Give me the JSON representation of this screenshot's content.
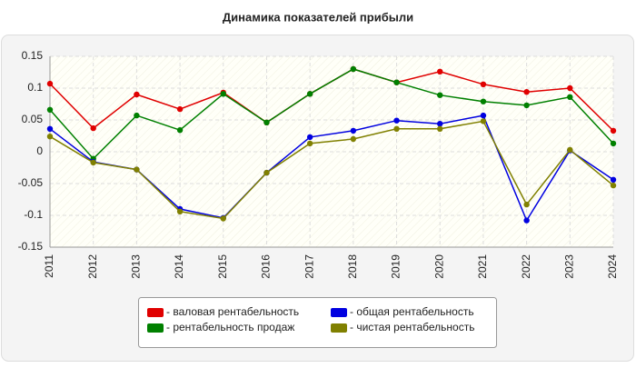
{
  "chart_data": {
    "type": "line",
    "title": "Динамика показателей прибыли",
    "categories": [
      "2011",
      "2012",
      "2013",
      "2014",
      "2015",
      "2016",
      "2017",
      "2018",
      "2019",
      "2020",
      "2021",
      "2022",
      "2023",
      "2024"
    ],
    "series": [
      {
        "name": "- валовая рентабельность",
        "color": "#e00000",
        "values": [
          0.107,
          0.037,
          0.09,
          0.067,
          0.093,
          0.046,
          0.091,
          0.13,
          0.109,
          0.126,
          0.106,
          0.094,
          0.1,
          0.033
        ]
      },
      {
        "name": "- рентабельность продаж",
        "color": "#008000",
        "values": [
          0.066,
          -0.011,
          0.057,
          0.034,
          0.091,
          0.046,
          0.091,
          0.13,
          0.109,
          0.089,
          0.079,
          0.073,
          0.086,
          0.013
        ]
      },
      {
        "name": "- общая рентабельность",
        "color": "#0000e0",
        "values": [
          0.036,
          -0.016,
          -0.028,
          -0.09,
          -0.104,
          -0.033,
          0.023,
          0.033,
          0.049,
          0.044,
          0.057,
          -0.108,
          0.002,
          -0.044
        ]
      },
      {
        "name": "- чистая рентабельность",
        "color": "#808000",
        "values": [
          0.024,
          -0.017,
          -0.028,
          -0.094,
          -0.105,
          -0.033,
          0.013,
          0.02,
          0.036,
          0.036,
          0.048,
          -0.083,
          0.003,
          -0.053
        ]
      }
    ],
    "ylim": [
      -0.15,
      0.15
    ],
    "yticks": [
      -0.15,
      -0.1,
      -0.05,
      0,
      0.05,
      0.1,
      0.15
    ],
    "grid": true
  }
}
